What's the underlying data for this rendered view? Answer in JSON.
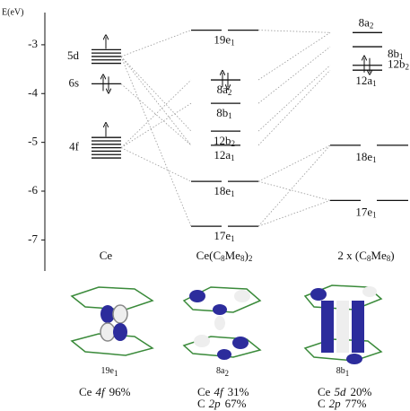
{
  "axis": {
    "label": "E(eV)",
    "ylim": [
      -7.6,
      -2.45
    ],
    "yticks": [
      -3,
      -4,
      -5,
      -6,
      -7
    ]
  },
  "columns": [
    {
      "label": {
        "main": "Ce",
        "sub": "",
        "rest": ""
      },
      "levels": [
        {
          "label": "5d",
          "energies": [
            -3.1,
            -3.17,
            -3.24,
            -3.31,
            -3.38
          ]
        },
        {
          "label": "6s",
          "energies": [
            -3.8
          ]
        },
        {
          "label": "4f",
          "energies": [
            -4.9,
            -4.97,
            -5.04,
            -5.11,
            -5.18,
            -5.25,
            -5.32
          ]
        }
      ]
    },
    {
      "label": {
        "main": "Ce(C",
        "sub": "8",
        "rest": "Me",
        "sub2": "8",
        "end": ")",
        "sub3": "2"
      },
      "levels": [
        {
          "base": "19e",
          "sub": "1",
          "energy": -2.7
        },
        {
          "base": "8a",
          "sub": "2",
          "energy": -3.72
        },
        {
          "base": "8b",
          "sub": "1",
          "energy": -4.2
        },
        {
          "base": "12b",
          "sub": "2",
          "energy": -4.77
        },
        {
          "base": "12a",
          "sub": "1",
          "energy": -5.06
        },
        {
          "base": "18e",
          "sub": "1",
          "energy": -5.8
        },
        {
          "base": "17e",
          "sub": "1",
          "energy": -6.72
        }
      ]
    },
    {
      "label": {
        "main": "2 x (C",
        "sub": "8",
        "rest": "Me",
        "sub2": "8",
        "end": ")",
        "sub3": ""
      },
      "levels": [
        {
          "base": "8a",
          "sub": "2",
          "energy": -2.75
        },
        {
          "base": "8b",
          "sub": "1",
          "energy": -3.04
        },
        {
          "base": "12b",
          "sub": "2",
          "energy": -3.42
        },
        {
          "base": "12a",
          "sub": "1",
          "energy": -3.52
        },
        {
          "base": "18e",
          "sub": "1",
          "energy": -5.06
        },
        {
          "base": "17e",
          "sub": "1",
          "energy": -6.19
        }
      ]
    }
  ],
  "orbitals": [
    {
      "base": "19e",
      "sub": "1",
      "composition": [
        {
          "atom": "Ce",
          "orbital": "4f",
          "percent": "96%"
        }
      ]
    },
    {
      "base": "8a",
      "sub": "2",
      "composition": [
        {
          "atom": "Ce",
          "orbital": "4f",
          "percent": "31%"
        },
        {
          "atom": "C",
          "orbital": "2p",
          "percent": "67%"
        }
      ]
    },
    {
      "base": "8b",
      "sub": "1",
      "composition": [
        {
          "atom": "Ce",
          "orbital": "5d",
          "percent": "20%"
        },
        {
          "atom": "C",
          "orbital": "2p",
          "percent": "77%"
        }
      ]
    }
  ]
}
